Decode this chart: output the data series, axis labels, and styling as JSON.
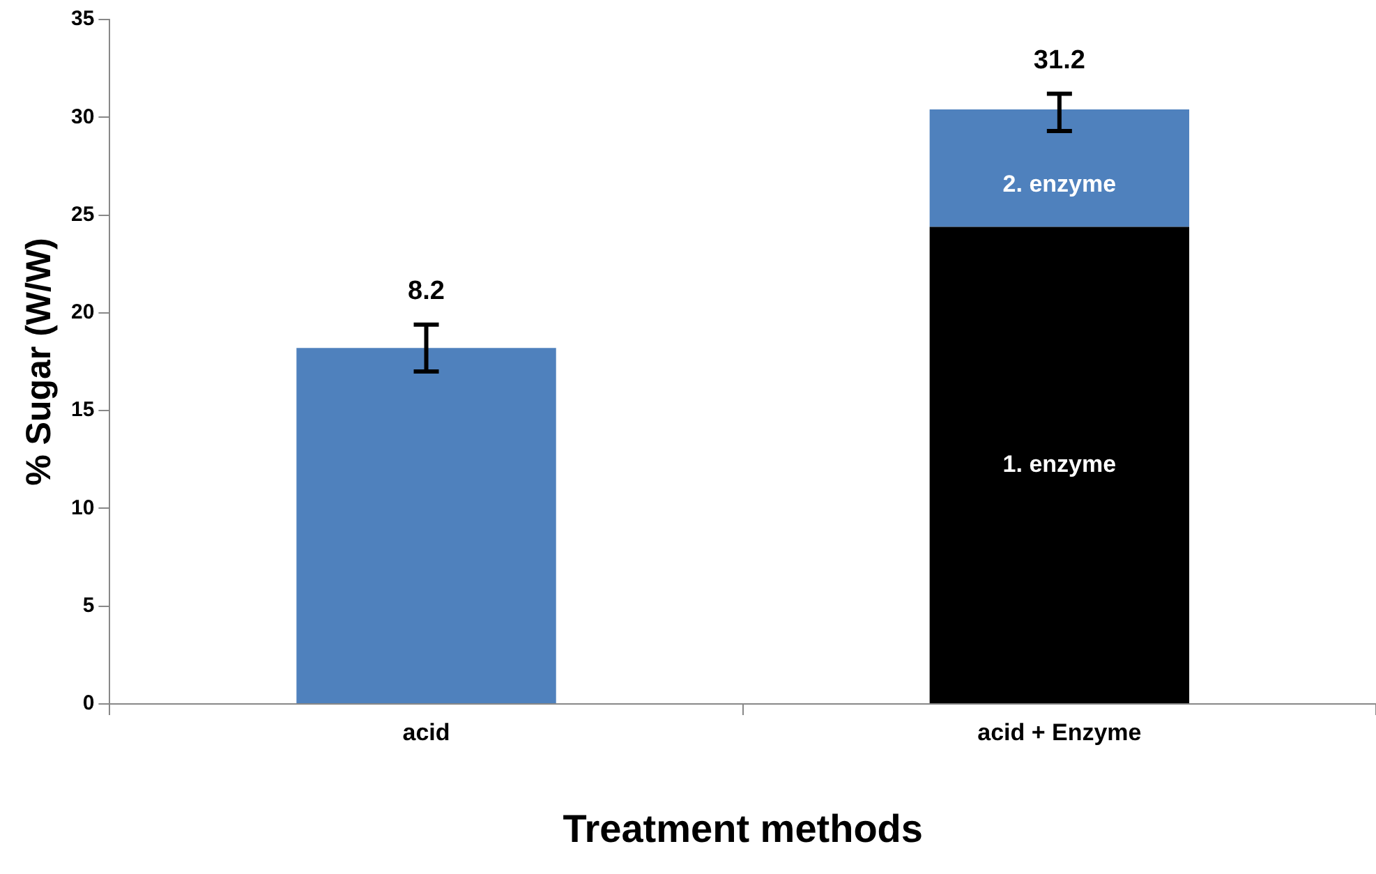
{
  "chart_data": {
    "type": "bar",
    "stacked": true,
    "xlabel": "Treatment methods",
    "ylabel": "% Sugar (W/W)",
    "categories": [
      "acid",
      "acid + Enzyme"
    ],
    "series": [
      {
        "color": "#4f81bd",
        "values": [
          18.2,
          null
        ],
        "errors": [
          [
            17.0,
            19.4
          ],
          null
        ]
      },
      {
        "name": "1. enzyme",
        "color": "#000000",
        "values": [
          null,
          24.4
        ],
        "errors": [
          null,
          null
        ]
      },
      {
        "name": "2. enzyme",
        "color": "#4f81bd",
        "values": [
          null,
          6.0
        ],
        "errors": [
          null,
          [
            29.3,
            31.2
          ]
        ]
      }
    ],
    "annotations": [
      {
        "text": "8.2",
        "x": "acid",
        "y": 19.4
      },
      {
        "text": "31.2",
        "x": "acid + Enzyme",
        "y": 31.2
      }
    ],
    "ylim": [
      0,
      35
    ],
    "yticks": [
      0,
      5,
      10,
      15,
      20,
      25,
      30,
      35
    ],
    "grid": false,
    "legend": false
  }
}
